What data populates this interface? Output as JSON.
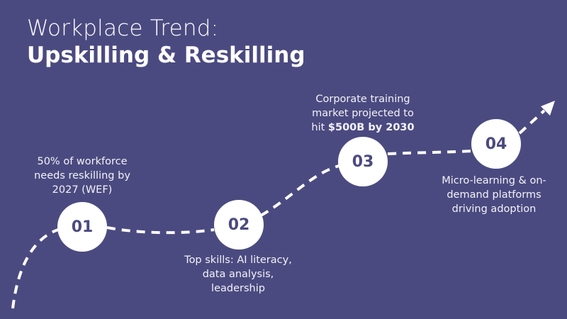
{
  "title": {
    "line1": "Workplace Trend:",
    "line2": "Upskilling & Reskilling"
  },
  "colors": {
    "background": "#4b4a80",
    "circle": "#ffffff",
    "number": "#4b4a80",
    "path": "#ffffff"
  },
  "steps": [
    {
      "number": "01",
      "text": "50% of workforce needs reskilling by 2027 (WEF)"
    },
    {
      "number": "02",
      "text": "Top skills: AI literacy, data analysis, leadership"
    },
    {
      "number": "03",
      "text_prefix": "Corporate training market projected to hit ",
      "text_bold": "$500B by 2030"
    },
    {
      "number": "04",
      "text": "Micro-learning & on-demand platforms driving adoption"
    }
  ],
  "path_icon": "dashed-arrow-icon"
}
